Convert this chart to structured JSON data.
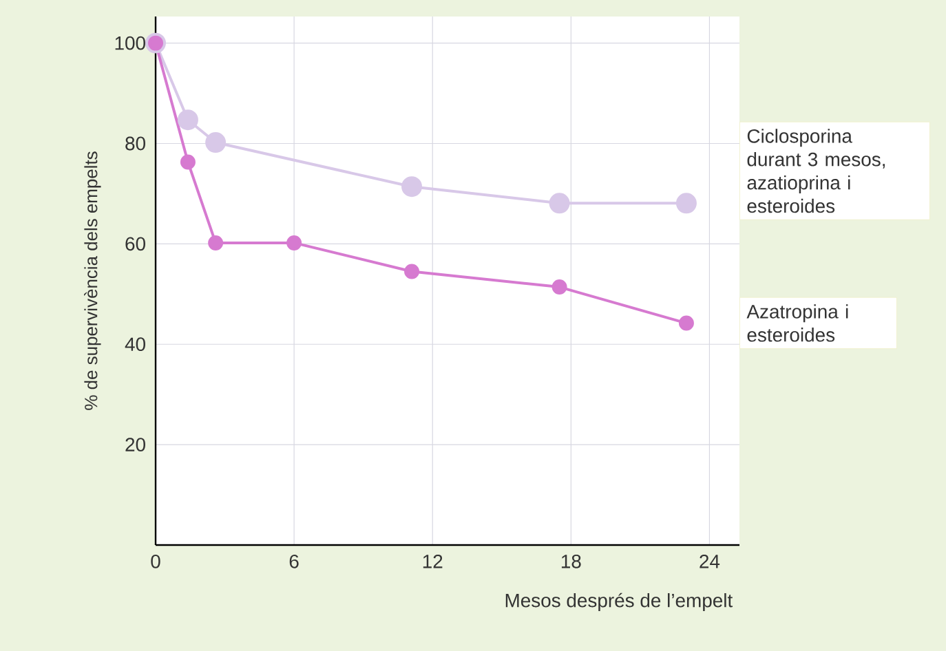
{
  "chart_data": {
    "type": "line",
    "xlabel": "Mesos després de l’empelt",
    "ylabel": "% de supervivència dels empelts",
    "xlim": [
      0,
      25.3
    ],
    "ylim": [
      0,
      105.3
    ],
    "xticks": [
      0,
      6,
      12,
      18,
      24
    ],
    "yticks": [
      {
        "value": 0,
        "label": null
      },
      20,
      40,
      60,
      80,
      100
    ],
    "grid": true,
    "legend": "right",
    "marker": "circle",
    "line_style": "solid",
    "series": [
      {
        "name": "Ciclosporina durant 3 mesos, azatioprina i esteroides",
        "color": "#d8c8e8",
        "x": [
          0,
          1.4,
          2.6,
          11.1,
          17.5,
          23
        ],
        "values": [
          100,
          84.7,
          80.2,
          71.4,
          68.1,
          68.1
        ]
      },
      {
        "name": "Azatropina i esteroides",
        "color": "#d67ad0",
        "x": [
          0,
          1.4,
          2.6,
          6,
          11.1,
          17.5,
          23
        ],
        "values": [
          100,
          76.3,
          60.2,
          60.2,
          54.5,
          51.4,
          44.2
        ]
      }
    ]
  }
}
